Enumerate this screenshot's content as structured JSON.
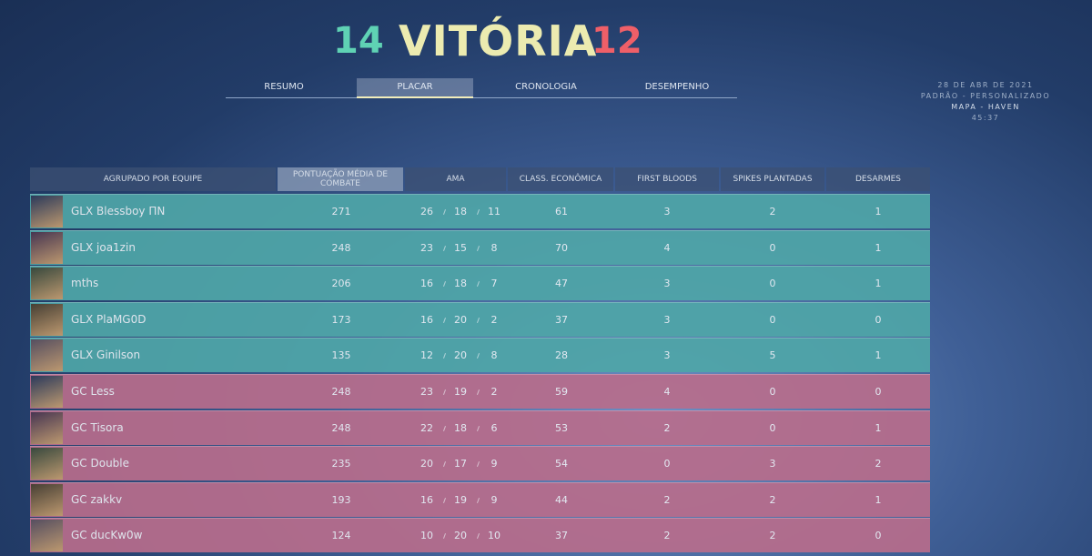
{
  "header": {
    "score_left": "14",
    "title": "VITÓRIA",
    "score_right": "12"
  },
  "tabs": [
    "RESUMO",
    "PLACAR",
    "CRONOLOGIA",
    "DESEMPENHO"
  ],
  "match_info": [
    "28 DE ABR DE 2021",
    "PADRÃO - PERSONALIZADO",
    "MAPA - HAVEN",
    "45:37"
  ],
  "table": {
    "columns": [
      "AGRUPADO POR EQUIPE",
      "PONTUAÇÃO MÉDIA DE COMBATE",
      "AMA",
      "CLASS. ECONÔMICA",
      "FIRST BLOODS",
      "SPIKES PLANTADAS",
      "DESARMES"
    ],
    "teams": [
      {
        "color": "#4fa6a8",
        "rows": [
          [
            "GLX Blessboy ΠN",
            271,
            26,
            18,
            11,
            61,
            3,
            2,
            1
          ],
          [
            "GLX joa1zin",
            248,
            23,
            15,
            8,
            70,
            4,
            0,
            1
          ],
          [
            "mths",
            206,
            16,
            18,
            7,
            47,
            3,
            0,
            1
          ],
          [
            "GLX PlaMG0D",
            173,
            16,
            20,
            2,
            37,
            3,
            0,
            0
          ],
          [
            "GLX Ginilson",
            135,
            12,
            20,
            8,
            28,
            3,
            5,
            1
          ]
        ]
      },
      {
        "color": "#b86d8c",
        "rows": [
          [
            "GC Less",
            248,
            23,
            19,
            2,
            59,
            4,
            0,
            0
          ],
          [
            "GC Tisora",
            248,
            22,
            18,
            6,
            53,
            2,
            0,
            1
          ],
          [
            "GC Double",
            235,
            20,
            17,
            9,
            54,
            0,
            3,
            2
          ],
          [
            "GC zakkv",
            193,
            16,
            19,
            9,
            44,
            2,
            2,
            1
          ],
          [
            "GC ducKw0w",
            124,
            10,
            20,
            10,
            37,
            2,
            2,
            0
          ]
        ]
      }
    ]
  }
}
